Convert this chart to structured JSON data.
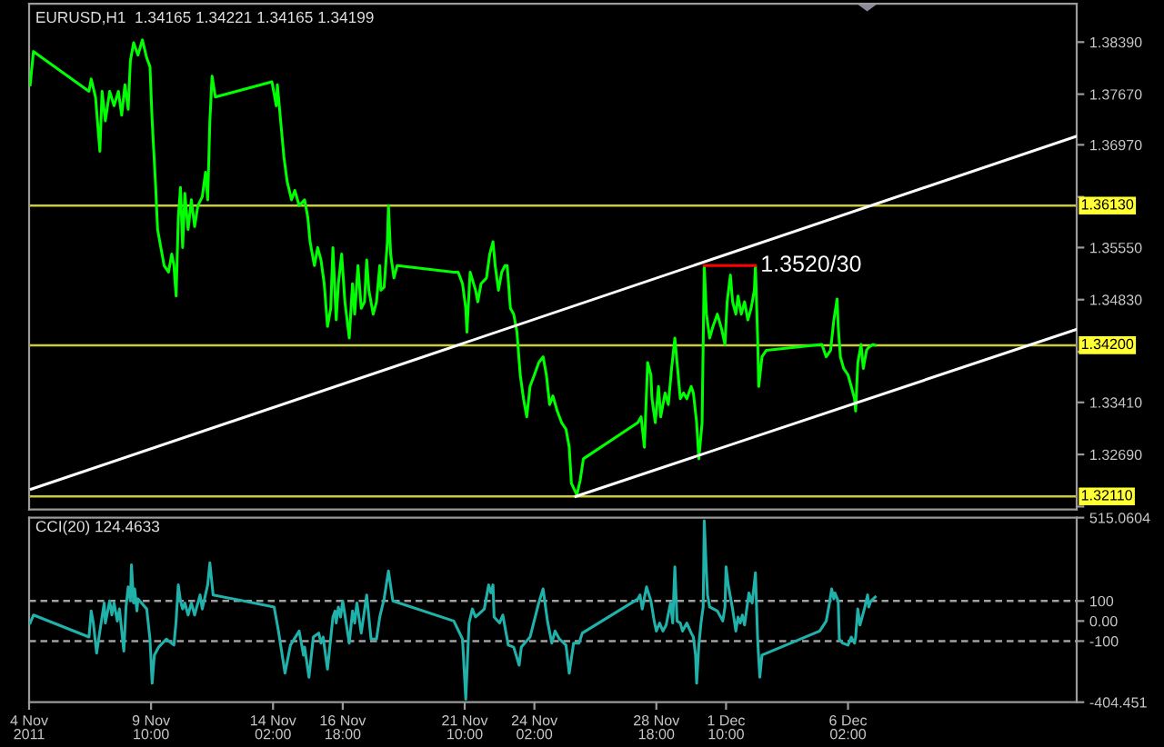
{
  "chart_data": [
    {
      "type": "line",
      "title": "EURUSD,H1  1.34165 1.34221 1.34165 1.34199",
      "xlim": [
        "2011-11-04T18:00",
        "2011-12-14T20:00"
      ],
      "ylim": [
        1.3193,
        1.3892
      ],
      "tick_labels": "y",
      "yticks": [
        {
          "value": 1.3839,
          "label": "1.38390"
        },
        {
          "value": 1.3767,
          "label": "1.37670"
        },
        {
          "value": 1.3697,
          "label": "1.36970"
        },
        {
          "value": 1.3625,
          "label": null
        },
        {
          "value": 1.3555,
          "label": "1.35550"
        },
        {
          "value": 1.3483,
          "label": "1.34830"
        },
        {
          "value": 1.3411,
          "label": null
        },
        {
          "value": 1.3341,
          "label": "1.33410"
        },
        {
          "value": 1.3269,
          "label": "1.32690"
        },
        {
          "value": 1.3197,
          "label": null
        }
      ],
      "series": [
        {
          "color": "#00ff00",
          "x": [
            "2011-11-04T19:00",
            "2011-11-04T22:00",
            "2011-11-07T01:00",
            "2011-11-07T03:00",
            "2011-11-07T07:00",
            "2011-11-07T11:00",
            "2011-11-07T13:00",
            "2011-11-07T16:00",
            "2011-11-07T20:00",
            "2011-11-08T00:00",
            "2011-11-08T04:00",
            "2011-11-08T07:00",
            "2011-11-08T10:00",
            "2011-11-08T13:00",
            "2011-11-08T15:00",
            "2011-11-08T18:00",
            "2011-11-08T22:00",
            "2011-11-09T02:00",
            "2011-11-09T06:00",
            "2011-11-09T09:00",
            "2011-11-09T11:00",
            "2011-11-09T14:00",
            "2011-11-09T16:00",
            "2011-11-09T19:00",
            "2011-11-09T22:00",
            "2011-11-10T02:00",
            "2011-11-10T05:00",
            "2011-11-10T07:00",
            "2011-11-10T09:00",
            "2011-11-10T11:00",
            "2011-11-10T13:00",
            "2011-11-10T15:00",
            "2011-11-10T17:00",
            "2011-11-10T20:00",
            "2011-11-10T23:00",
            "2011-11-11T02:00",
            "2011-11-11T05:00",
            "2011-11-11T09:00",
            "2011-11-11T12:00",
            "2011-11-11T14:00",
            "2011-11-11T16:00",
            "2011-11-11T18:00",
            "2011-11-11T21:00",
            "2011-11-14T01:00",
            "2011-11-14T05:00",
            "2011-11-14T06:00",
            "2011-11-14T09:00",
            "2011-11-14T12:00",
            "2011-11-14T15:00",
            "2011-11-14T19:00",
            "2011-11-14T22:00",
            "2011-11-15T02:00",
            "2011-11-15T07:00",
            "2011-11-15T10:00",
            "2011-11-15T12:00",
            "2011-11-15T16:00",
            "2011-11-15T19:00",
            "2011-11-15T22:00",
            "2011-11-16T01:00",
            "2011-11-16T04:00",
            "2011-11-16T07:00",
            "2011-11-16T09:00",
            "2011-11-16T12:00",
            "2011-11-16T14:00",
            "2011-11-16T17:00",
            "2011-11-16T20:00",
            "2011-11-17T00:00",
            "2011-11-17T03:00",
            "2011-11-17T05:00",
            "2011-11-17T08:00",
            "2011-11-17T11:00",
            "2011-11-17T14:00",
            "2011-11-17T16:00",
            "2011-11-17T18:00",
            "2011-11-17T22:00",
            "2011-11-18T01:00",
            "2011-11-18T04:00",
            "2011-11-18T05:00",
            "2011-11-18T08:00",
            "2011-11-18T11:00",
            "2011-11-18T12:00",
            "2011-11-18T14:00",
            "2011-11-18T17:00",
            "2011-11-18T20:00",
            "2011-11-21T00:00",
            "2011-11-21T04:00",
            "2011-11-21T08:00",
            "2011-11-21T11:00",
            "2011-11-21T12:00",
            "2011-11-21T15:00",
            "2011-11-21T20:00",
            "2011-11-21T22:00",
            "2011-11-22T01:00",
            "2011-11-22T06:00",
            "2011-11-22T09:00",
            "2011-11-22T12:00",
            "2011-11-22T14:00",
            "2011-11-22T17:00",
            "2011-11-22T20:00",
            "2011-11-22T23:00",
            "2011-11-23T01:00",
            "2011-11-23T04:00",
            "2011-11-23T07:00",
            "2011-11-23T10:00",
            "2011-11-23T13:00",
            "2011-11-23T16:00",
            "2011-11-23T19:00",
            "2011-11-23T22:00",
            "2011-11-24T02:00",
            "2011-11-24T06:00",
            "2011-11-24T10:00",
            "2011-11-24T13:00",
            "2011-11-24T16:00",
            "2011-11-24T19:00",
            "2011-11-24T23:00",
            "2011-11-25T03:00",
            "2011-11-25T07:00",
            "2011-11-25T10:00",
            "2011-11-25T12:00",
            "2011-11-25T17:00",
            "2011-11-25T20:00",
            "2011-11-25T23:00",
            "2011-11-28T01:00",
            "2011-11-28T04:00",
            "2011-11-28T07:00",
            "2011-11-28T10:00",
            "2011-11-28T13:00",
            "2011-11-28T14:00",
            "2011-11-28T17:00",
            "2011-11-28T20:00",
            "2011-11-28T22:00",
            "2011-11-29T02:00",
            "2011-11-29T05:00",
            "2011-11-29T08:00",
            "2011-11-29T11:00",
            "2011-11-29T13:00",
            "2011-11-29T16:00",
            "2011-11-29T19:00",
            "2011-11-29T22:00",
            "2011-11-30T02:00",
            "2011-11-30T04:00",
            "2011-11-30T07:00",
            "2011-11-30T09:00",
            "2011-11-30T12:00",
            "2011-11-30T14:00",
            "2011-11-30T16:00",
            "2011-11-30T19:00",
            "2011-11-30T22:00",
            "2011-12-01T02:00",
            "2011-12-01T06:00",
            "2011-12-01T09:00",
            "2011-12-01T11:00",
            "2011-12-01T14:00",
            "2011-12-01T16:00",
            "2011-12-01T19:00",
            "2011-12-01T21:00",
            "2011-12-02T00:00",
            "2011-12-02T03:00",
            "2011-12-02T06:00",
            "2011-12-02T09:00",
            "2011-12-02T12:00",
            "2011-12-02T13:00",
            "2011-12-02T15:00",
            "2011-12-02T16:00",
            "2011-12-02T19:00",
            "2011-12-02T23:00",
            "2011-12-05T02:00",
            "2011-12-05T06:00",
            "2011-12-05T10:00",
            "2011-12-05T13:00",
            "2011-12-05T16:00",
            "2011-12-05T17:00",
            "2011-12-05T19:00",
            "2011-12-05T22:00",
            "2011-12-06T02:00",
            "2011-12-06T05:00",
            "2011-12-06T08:00",
            "2011-12-06T09:00",
            "2011-12-06T11:00",
            "2011-12-06T14:00",
            "2011-12-06T16:00",
            "2011-12-06T19:00",
            "2011-12-06T21:00",
            "2011-12-07T01:00",
            "2011-12-07T03:00"
          ],
          "values": [
            1.378,
            1.3826,
            1.3771,
            1.3788,
            1.3763,
            1.3688,
            1.3771,
            1.373,
            1.3771,
            1.3751,
            1.3771,
            1.3738,
            1.378,
            1.3746,
            1.3813,
            1.3838,
            1.3821,
            1.3842,
            1.3817,
            1.3805,
            1.373,
            1.3646,
            1.358,
            1.3555,
            1.353,
            1.3521,
            1.3546,
            1.353,
            1.3488,
            1.3596,
            1.3638,
            1.3555,
            1.363,
            1.358,
            1.3621,
            1.3584,
            1.3613,
            1.3625,
            1.3659,
            1.3621,
            1.373,
            1.3792,
            1.3763,
            1.3784,
            1.3751,
            1.378,
            1.373,
            1.368,
            1.3646,
            1.3621,
            1.3634,
            1.3613,
            1.3621,
            1.3596,
            1.3563,
            1.353,
            1.3555,
            1.3538,
            1.3505,
            1.3446,
            1.3471,
            1.3555,
            1.3455,
            1.3505,
            1.3546,
            1.348,
            1.343,
            1.3505,
            1.3463,
            1.353,
            1.3471,
            1.348,
            1.3538,
            1.3496,
            1.3463,
            1.348,
            1.353,
            1.3496,
            1.35,
            1.3563,
            1.3613,
            1.3546,
            1.3513,
            1.353,
            1.3521,
            1.3521,
            1.3505,
            1.3471,
            1.3438,
            1.3521,
            1.3496,
            1.348,
            1.3505,
            1.3513,
            1.3546,
            1.3563,
            1.353,
            1.3496,
            1.3521,
            1.353,
            1.353,
            1.3471,
            1.3463,
            1.3438,
            1.3379,
            1.3346,
            1.3321,
            1.3363,
            1.3379,
            1.3396,
            1.3404,
            1.3379,
            1.3338,
            1.335,
            1.3329,
            1.3313,
            1.3304,
            1.3279,
            1.3229,
            1.3213,
            1.3233,
            1.3263,
            1.3313,
            1.3321,
            1.3279,
            1.3396,
            1.3379,
            1.3346,
            1.3313,
            1.3363,
            1.3321,
            1.3354,
            1.3338,
            1.3388,
            1.343,
            1.3396,
            1.3346,
            1.3354,
            1.3346,
            1.3363,
            1.3354,
            1.3313,
            1.3263,
            1.3313,
            1.353,
            1.3463,
            1.343,
            1.3446,
            1.3463,
            1.3442,
            1.3421,
            1.348,
            1.3517,
            1.348,
            1.3463,
            1.3488,
            1.3463,
            1.348,
            1.3455,
            1.3471,
            1.3496,
            1.353,
            1.343,
            1.3363,
            1.3404,
            1.3413,
            1.3421,
            1.3404,
            1.3413,
            1.3455,
            1.3484,
            1.3446,
            1.3404,
            1.3388,
            1.3379,
            1.3363,
            1.3346,
            1.3329,
            1.3396,
            1.3421,
            1.3388,
            1.3413,
            1.3417,
            1.3421,
            1.342
          ]
        },
        {
          "color": "#ffffff",
          "x": [
            "2011-11-04T20:00",
            "2011-12-14T20:00"
          ],
          "values": [
            1.3221,
            1.3709
          ]
        },
        {
          "color": "#ffffff",
          "x": [
            "2011-11-25T16:00",
            "2011-12-14T20:00"
          ],
          "values": [
            1.3211,
            1.3442
          ]
        },
        {
          "color": "#ff0000",
          "x": [
            "2011-11-30T14:00",
            "2011-12-02T13:00"
          ],
          "values": [
            1.353,
            1.353
          ]
        }
      ],
      "ref_lines": [
        {
          "axis": "y",
          "value": 1.3613,
          "label": "1.36130",
          "color": "#cccc33"
        },
        {
          "axis": "y",
          "value": 1.342,
          "label": "1.34200",
          "color": "#cccc33"
        },
        {
          "axis": "y",
          "value": 1.3211,
          "label": "1.32110",
          "color": "#cccc33"
        }
      ],
      "annotations": [
        {
          "text": "1.3520/30",
          "x": "2011-12-02T13:00",
          "y": 1.353
        }
      ]
    },
    {
      "type": "line",
      "title": "CCI(20) 124.4633",
      "xlim": [
        "2011-11-04T18:00",
        "2011-12-14T20:00"
      ],
      "ylim": [
        -404.451,
        515.0604
      ],
      "xticks": [
        {
          "value": "2011-11-04T18:00",
          "label": "4 Nov 2011"
        },
        {
          "value": "2011-11-09T10:00",
          "label": "9 Nov 10:00"
        },
        {
          "value": "2011-11-14T02:00",
          "label": "14 Nov 02:00"
        },
        {
          "value": "2011-11-16T18:00",
          "label": "16 Nov 18:00"
        },
        {
          "value": "2011-11-21T10:00",
          "label": "21 Nov 10:00"
        },
        {
          "value": "2011-11-24T02:00",
          "label": "24 Nov 02:00"
        },
        {
          "value": "2011-11-28T18:00",
          "label": "28 Nov 18:00"
        },
        {
          "value": "2011-12-01T10:00",
          "label": "1 Dec 10:00"
        },
        {
          "value": "2011-12-06T02:00",
          "label": "6 Dec 02:00"
        }
      ],
      "yticks": [
        515.0604,
        100,
        {
          "value": 0,
          "label": "0.00"
        },
        -100,
        -404.451
      ],
      "series": [
        {
          "color": "#20b2aa",
          "x": [
            "2011-11-04T19:00",
            "2011-11-04T22:00",
            "2011-11-07T01:00",
            "2011-11-07T03:00",
            "2011-11-07T05:00",
            "2011-11-07T08:00",
            "2011-11-07T11:00",
            "2011-11-07T15:00",
            "2011-11-07T16:00",
            "2011-11-07T20:00",
            "2011-11-07T22:00",
            "2011-11-08T00:00",
            "2011-11-08T03:00",
            "2011-11-08T05:00",
            "2011-11-08T09:00",
            "2011-11-08T11:00",
            "2011-11-08T13:00",
            "2011-11-08T15:00",
            "2011-11-08T16:00",
            "2011-11-08T18:00",
            "2011-11-08T19:00",
            "2011-11-08T21:00",
            "2011-11-08T22:00",
            "2011-11-09T06:00",
            "2011-11-09T09:00",
            "2011-11-09T11:00",
            "2011-11-09T13:00",
            "2011-11-09T17:00",
            "2011-11-10T00:00",
            "2011-11-10T07:00",
            "2011-11-10T09:00",
            "2011-11-10T11:00",
            "2011-11-10T13:00",
            "2011-11-10T15:00",
            "2011-11-10T17:00",
            "2011-11-10T20:00",
            "2011-11-10T23:00",
            "2011-11-11T02:00",
            "2011-11-11T07:00",
            "2011-11-11T09:00",
            "2011-11-11T14:00",
            "2011-11-11T16:00",
            "2011-11-11T19:00",
            "2011-11-14T03:00",
            "2011-11-14T07:00",
            "2011-11-14T13:00",
            "2011-11-14T18:00",
            "2011-11-15T02:00",
            "2011-11-15T06:00",
            "2011-11-15T07:00",
            "2011-11-15T11:00",
            "2011-11-15T15:00",
            "2011-11-15T20:00",
            "2011-11-15T22:00",
            "2011-11-16T00:00",
            "2011-11-16T04:00",
            "2011-11-16T09:00",
            "2011-11-16T11:00",
            "2011-11-16T12:00",
            "2011-11-16T14:00",
            "2011-11-16T16:00",
            "2011-11-16T18:00",
            "2011-11-17T00:00",
            "2011-11-17T03:00",
            "2011-11-17T05:00",
            "2011-11-17T07:00",
            "2011-11-17T11:00",
            "2011-11-17T16:00",
            "2011-11-17T20:00",
            "2011-11-18T01:00",
            "2011-11-18T04:00",
            "2011-11-18T08:00",
            "2011-11-18T12:00",
            "2011-11-18T16:00",
            "2011-11-21T00:00",
            "2011-11-21T08:00",
            "2011-11-21T11:00",
            "2011-11-21T14:00",
            "2011-11-21T17:00",
            "2011-11-21T20:00",
            "2011-11-22T04:00",
            "2011-11-22T08:00",
            "2011-11-22T10:00",
            "2011-11-22T12:00",
            "2011-11-22T13:00",
            "2011-11-22T18:00",
            "2011-11-22T21:00",
            "2011-11-23T02:00",
            "2011-11-23T07:00",
            "2011-11-23T12:00",
            "2011-11-23T14:00",
            "2011-11-23T22:00",
            "2011-11-24T06:00",
            "2011-11-24T10:00",
            "2011-11-24T14:00",
            "2011-11-24T18:00",
            "2011-11-24T21:00",
            "2011-11-25T01:00",
            "2011-11-25T07:00",
            "2011-11-25T10:00",
            "2011-11-25T14:00",
            "2011-11-25T19:00",
            "2011-11-25T22:00",
            "2011-11-28T01:00",
            "2011-11-28T03:00",
            "2011-11-28T05:00",
            "2011-11-28T09:00",
            "2011-11-28T13:00",
            "2011-11-28T16:00",
            "2011-11-28T18:00",
            "2011-11-28T21:00",
            "2011-11-29T00:00",
            "2011-11-29T03:00",
            "2011-11-29T07:00",
            "2011-11-29T09:00",
            "2011-11-29T11:00",
            "2011-11-29T13:00",
            "2011-11-29T16:00",
            "2011-11-29T18:00",
            "2011-11-29T22:00",
            "2011-11-30T02:00",
            "2011-11-30T04:00",
            "2011-11-30T06:00",
            "2011-11-30T07:00",
            "2011-11-30T09:00",
            "2011-11-30T11:00",
            "2011-11-30T13:00",
            "2011-11-30T14:00",
            "2011-11-30T16:00",
            "2011-11-30T17:00",
            "2011-11-30T19:00",
            "2011-12-01T02:00",
            "2011-12-01T07:00",
            "2011-12-01T09:00",
            "2011-12-01T10:00",
            "2011-12-01T12:00",
            "2011-12-01T16:00",
            "2011-12-01T19:00",
            "2011-12-01T21:00",
            "2011-12-01T23:00",
            "2011-12-02T01:00",
            "2011-12-02T03:00",
            "2011-12-02T05:00",
            "2011-12-02T07:00",
            "2011-12-02T10:00",
            "2011-12-02T13:00",
            "2011-12-02T15:00",
            "2011-12-02T17:00",
            "2011-12-02T19:00",
            "2011-12-05T00:00",
            "2011-12-05T06:00",
            "2011-12-05T09:00",
            "2011-12-05T11:00",
            "2011-12-05T13:00",
            "2011-12-05T14:00",
            "2011-12-05T17:00",
            "2011-12-05T18:00",
            "2011-12-05T21:00",
            "2011-12-06T02:00",
            "2011-12-06T05:00",
            "2011-12-06T08:00",
            "2011-12-06T09:00",
            "2011-12-06T11:00",
            "2011-12-06T13:00",
            "2011-12-06T17:00",
            "2011-12-06T20:00",
            "2011-12-06T21:00",
            "2011-12-06T23:00",
            "2011-12-07T03:00"
          ],
          "values": [
            -10,
            30,
            -80,
            50,
            -10,
            -160,
            -50,
            90,
            -10,
            100,
            30,
            90,
            0,
            60,
            -150,
            70,
            170,
            100,
            280,
            90,
            160,
            50,
            110,
            60,
            -90,
            -310,
            -170,
            -130,
            -90,
            -120,
            0,
            180,
            100,
            60,
            90,
            30,
            90,
            30,
            130,
            60,
            180,
            290,
            130,
            70,
            -50,
            -260,
            -120,
            -50,
            -170,
            -130,
            -280,
            -80,
            -60,
            -110,
            -80,
            -240,
            20,
            50,
            -10,
            70,
            20,
            100,
            -110,
            50,
            -10,
            90,
            -60,
            130,
            -90,
            -90,
            20,
            110,
            250,
            100,
            0,
            -90,
            -390,
            -10,
            60,
            20,
            60,
            180,
            140,
            180,
            20,
            -10,
            30,
            -120,
            -130,
            -220,
            -130,
            -80,
            90,
            160,
            0,
            -110,
            -50,
            -90,
            -120,
            -260,
            -110,
            -110,
            -60,
            110,
            130,
            60,
            170,
            100,
            0,
            -50,
            -10,
            -50,
            -20,
            90,
            -10,
            270,
            0,
            -10,
            -50,
            -10,
            -60,
            -80,
            -170,
            -310,
            -120,
            -10,
            70,
            500,
            240,
            130,
            70,
            50,
            0,
            70,
            270,
            180,
            60,
            -50,
            20,
            -10,
            30,
            -20,
            60,
            140,
            90,
            240,
            -90,
            -280,
            -170,
            -50,
            0,
            90,
            160,
            110,
            140,
            100,
            -90,
            -110,
            -120,
            -80,
            -110,
            -80,
            60,
            -20,
            60,
            130,
            70,
            100,
            120
          ]
        }
      ],
      "ref_lines": [
        {
          "axis": "y",
          "value": 100,
          "color": "#a0a0a0",
          "line_style": "dashed"
        },
        {
          "axis": "y",
          "value": -100,
          "color": "#a0a0a0",
          "line_style": "dashed"
        }
      ]
    }
  ]
}
